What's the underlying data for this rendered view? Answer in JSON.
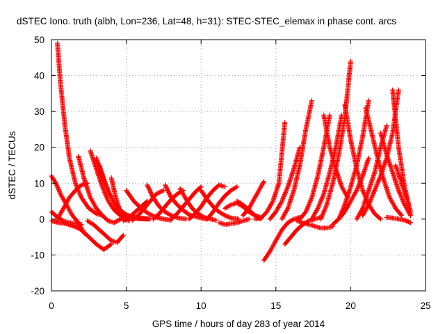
{
  "chart_data": {
    "type": "scatter",
    "title": "dSTEC Iono. truth (albh, Lon=236, Lat=48, h=31): STEC-STEC_elemax in phase cont. arcs",
    "xlabel": "GPS time / hours of day 283 of year 2014",
    "ylabel": "dSTEC  / TECUs",
    "xlim": [
      0,
      25
    ],
    "ylim": [
      -20,
      50
    ],
    "xticks": [
      0,
      5,
      10,
      15,
      20,
      25
    ],
    "yticks": [
      -20,
      -10,
      0,
      10,
      20,
      30,
      40,
      50
    ],
    "grid": true,
    "marker": "+",
    "color": "#ff0000",
    "series": [
      {
        "x": [
          0.4,
          0.6,
          0.9,
          1.2,
          1.6,
          2.0,
          2.5,
          3.0,
          3.4
        ],
        "y": [
          49,
          38,
          26,
          17,
          10,
          6,
          3,
          1.5,
          1
        ]
      },
      {
        "x": [
          0.0,
          0.3,
          0.6,
          1.0,
          1.4,
          1.8,
          2.2
        ],
        "y": [
          12,
          10,
          7,
          4,
          1,
          -1,
          -4
        ]
      },
      {
        "x": [
          0.0,
          0.4,
          0.8,
          1.2,
          1.6,
          2.0
        ],
        "y": [
          2,
          0.5,
          -0.5,
          -1,
          -1.2,
          -1.5
        ]
      },
      {
        "x": [
          0.0,
          0.5,
          1.0,
          1.5,
          2.0,
          2.5,
          3.0,
          3.5,
          4.0
        ],
        "y": [
          -0.5,
          -1,
          -1.3,
          -2,
          -3,
          -5,
          -7,
          -8.5,
          -7
        ]
      },
      {
        "x": [
          0.4,
          0.8,
          1.2,
          1.6,
          2.0,
          2.4
        ],
        "y": [
          0,
          3,
          6,
          8,
          9.5,
          10
        ]
      },
      {
        "x": [
          1.8,
          2.2,
          2.6,
          3.0,
          3.4,
          3.8,
          4.2,
          4.6,
          5.0
        ],
        "y": [
          17.5,
          11,
          6,
          3,
          1,
          -0.5,
          -1,
          0,
          1
        ]
      },
      {
        "x": [
          2.6,
          3.0,
          3.4,
          3.8,
          4.2,
          4.6,
          5.0,
          5.4,
          5.8,
          6.4
        ],
        "y": [
          19,
          14,
          9,
          5,
          2.5,
          1,
          0.3,
          0.2,
          0.1,
          0
        ]
      },
      {
        "x": [
          3.0,
          3.4,
          3.8,
          4.2,
          4.6,
          5.0,
          5.4,
          6.0,
          6.6
        ],
        "y": [
          17,
          12,
          7.5,
          4.5,
          2.5,
          1.2,
          0.6,
          0.2,
          0
        ]
      },
      {
        "x": [
          3.2,
          3.6,
          4.0,
          4.4,
          4.8,
          5.2,
          5.8,
          6.5
        ],
        "y": [
          15,
          10,
          6,
          3,
          1.5,
          0.8,
          0.3,
          0
        ]
      },
      {
        "x": [
          2.4,
          2.8,
          3.2,
          3.6,
          4.0,
          4.4,
          4.8
        ],
        "y": [
          -0.5,
          -1.5,
          -3,
          -4.5,
          -6,
          -6.5,
          -4.5
        ]
      },
      {
        "x": [
          4.0,
          4.3,
          4.6,
          4.9,
          5.2
        ],
        "y": [
          11.5,
          6,
          2,
          0,
          -0.5
        ]
      },
      {
        "x": [
          4.8,
          5.2,
          5.6,
          6.0,
          6.4
        ],
        "y": [
          -0.5,
          0.5,
          2,
          3.5,
          5
        ]
      },
      {
        "x": [
          5.0,
          5.5,
          6.0,
          6.5,
          7.0,
          7.5,
          8.0
        ],
        "y": [
          8,
          5,
          3,
          1.5,
          0.5,
          0,
          -0.3
        ]
      },
      {
        "x": [
          5.4,
          5.8,
          6.2,
          6.6,
          7.0,
          7.5
        ],
        "y": [
          -0.3,
          1,
          3,
          5,
          7,
          8
        ]
      },
      {
        "x": [
          6.4,
          6.8,
          7.2,
          7.6,
          8.0,
          8.5,
          9.0
        ],
        "y": [
          9.5,
          6,
          3.5,
          2,
          1,
          0.3,
          0
        ]
      },
      {
        "x": [
          6.8,
          7.2,
          7.6,
          8.0,
          8.4,
          8.8
        ],
        "y": [
          0,
          1.5,
          3.5,
          5.5,
          7,
          8
        ]
      },
      {
        "x": [
          7.6,
          8.0,
          8.4,
          8.8,
          9.2,
          9.8,
          10.4
        ],
        "y": [
          9.5,
          6,
          4,
          2.5,
          1.2,
          0.5,
          0
        ]
      },
      {
        "x": [
          8.0,
          8.4,
          8.8,
          9.2,
          9.6,
          10.0
        ],
        "y": [
          0,
          1.5,
          3.5,
          5.5,
          7.5,
          9
        ]
      },
      {
        "x": [
          8.6,
          9.0,
          9.4,
          9.8,
          10.2,
          10.6,
          11.0
        ],
        "y": [
          8.5,
          5.5,
          3,
          1.5,
          0.5,
          0,
          -0.3
        ]
      },
      {
        "x": [
          9.2,
          9.6,
          10.0,
          10.4,
          10.8,
          11.2,
          11.6
        ],
        "y": [
          0,
          1.5,
          3.5,
          6,
          8,
          9.5,
          9
        ]
      },
      {
        "x": [
          10.0,
          10.4,
          10.8,
          11.2,
          11.6,
          12.0,
          12.5
        ],
        "y": [
          8,
          5.5,
          3.5,
          2,
          1,
          0.3,
          0
        ]
      },
      {
        "x": [
          10.4,
          10.8,
          11.2,
          11.6,
          12.0,
          12.4
        ],
        "y": [
          0,
          2,
          4.5,
          6.5,
          8,
          9
        ]
      },
      {
        "x": [
          11.2,
          11.6,
          12.0,
          12.4,
          12.8,
          13.2
        ],
        "y": [
          -1,
          -1.5,
          -1.3,
          -1,
          -0.5,
          0
        ]
      },
      {
        "x": [
          11.6,
          12.0,
          12.4,
          12.8,
          13.2,
          13.6,
          14.0
        ],
        "y": [
          3,
          4,
          4.5,
          3.5,
          2,
          1,
          0.5
        ]
      },
      {
        "x": [
          12.4,
          12.8,
          13.2,
          13.6,
          14.0
        ],
        "y": [
          5,
          4,
          2.5,
          1,
          0
        ]
      },
      {
        "x": [
          12.8,
          13.2,
          13.6,
          14.0,
          14.2
        ],
        "y": [
          1,
          3,
          6,
          9,
          10.5
        ]
      },
      {
        "x": [
          13.6,
          14.0,
          14.4,
          14.8,
          15.2,
          15.6
        ],
        "y": [
          0,
          0.3,
          2,
          5,
          10,
          27
        ]
      },
      {
        "x": [
          14.2,
          14.6,
          15.0,
          15.4,
          15.8,
          16.2,
          16.6
        ],
        "y": [
          -11.5,
          -9,
          -6,
          -3,
          -1,
          0,
          0.5
        ]
      },
      {
        "x": [
          14.6,
          15.0,
          15.4,
          15.8,
          16.2,
          16.6
        ],
        "y": [
          0,
          2,
          5,
          9,
          14,
          20
        ]
      },
      {
        "x": [
          15.6,
          16.0,
          16.4,
          16.8,
          17.2,
          17.6,
          18.0
        ],
        "y": [
          -7,
          -5,
          -3,
          -1.5,
          -0.5,
          0,
          0.5
        ]
      },
      {
        "x": [
          15.4,
          15.8,
          16.2,
          16.6,
          17.0,
          17.4
        ],
        "y": [
          0,
          3,
          8,
          15,
          25,
          33
        ]
      },
      {
        "x": [
          16.4,
          16.8,
          17.2,
          17.6,
          18.0,
          18.4,
          18.8
        ],
        "y": [
          -0.5,
          -1,
          -1.5,
          -2,
          -2.5,
          -2.5,
          -2
        ]
      },
      {
        "x": [
          16.6,
          17.0,
          17.4,
          17.8,
          18.2,
          18.6
        ],
        "y": [
          0,
          2,
          6,
          12,
          20,
          29
        ]
      },
      {
        "x": [
          17.4,
          17.8,
          18.2,
          18.6,
          19.0,
          19.4
        ],
        "y": [
          0,
          3,
          7,
          13,
          20,
          29
        ]
      },
      {
        "x": [
          18.2,
          18.6,
          19.0,
          19.4,
          19.8
        ],
        "y": [
          29,
          20,
          14,
          9,
          6
        ]
      },
      {
        "x": [
          18.0,
          18.4,
          18.8,
          19.2,
          19.6,
          20.0
        ],
        "y": [
          0,
          4,
          10,
          18,
          28,
          44
        ]
      },
      {
        "x": [
          18.8,
          19.2,
          19.6,
          20.0,
          20.4,
          20.8,
          21.2
        ],
        "y": [
          -1.5,
          0,
          2,
          5,
          8,
          12,
          17
        ]
      },
      {
        "x": [
          19.6,
          20.0,
          20.4,
          20.8,
          21.2,
          21.6,
          22.0
        ],
        "y": [
          32,
          22,
          14,
          8,
          4,
          1.5,
          0
        ]
      },
      {
        "x": [
          19.2,
          19.6,
          20.0,
          20.4,
          20.8,
          21.2
        ],
        "y": [
          0,
          4,
          9,
          15,
          23,
          33
        ]
      },
      {
        "x": [
          20.4,
          20.8,
          21.2,
          21.6,
          22.0,
          22.4
        ],
        "y": [
          0,
          3,
          8,
          13,
          20,
          26
        ]
      },
      {
        "x": [
          21.0,
          21.4,
          21.8,
          22.2,
          22.6,
          23.0,
          23.4
        ],
        "y": [
          31,
          24,
          17,
          11,
          6,
          3,
          1
        ]
      },
      {
        "x": [
          20.8,
          21.2,
          21.6,
          22.0,
          22.4,
          22.8,
          23.2
        ],
        "y": [
          1,
          4,
          8,
          12,
          17,
          24,
          36
        ]
      },
      {
        "x": [
          22.0,
          22.4,
          22.8,
          23.2,
          23.6,
          24.0
        ],
        "y": [
          24,
          18,
          13,
          8,
          4,
          1
        ]
      },
      {
        "x": [
          22.8,
          23.2,
          23.6,
          24.0
        ],
        "y": [
          36,
          20,
          9,
          2
        ]
      },
      {
        "x": [
          23.0,
          23.4,
          23.8,
          24.0
        ],
        "y": [
          15,
          10,
          5,
          1
        ]
      },
      {
        "x": [
          22.4,
          22.8,
          23.2,
          23.6,
          24.0
        ],
        "y": [
          0.5,
          0.3,
          0,
          -0.3,
          -1
        ]
      }
    ]
  }
}
